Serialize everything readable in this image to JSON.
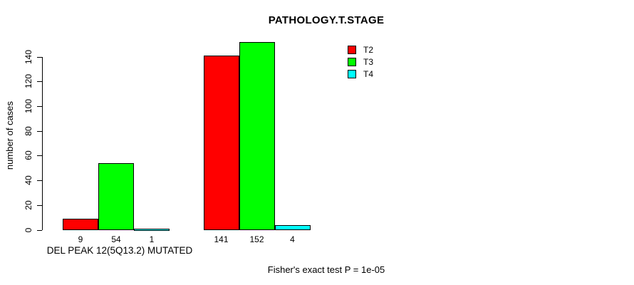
{
  "chart_data": {
    "type": "bar",
    "title": "PATHOLOGY.T.STAGE",
    "ylabel": "number of cases",
    "xlabel": "",
    "groups": [
      {
        "label": "DEL PEAK 12(5Q13.2) MUTATED",
        "values": [
          9,
          54,
          1
        ]
      },
      {
        "label": "",
        "values": [
          141,
          152,
          4
        ]
      }
    ],
    "series": [
      {
        "name": "T2",
        "color": "#ff0000"
      },
      {
        "name": "T3",
        "color": "#00ff00"
      },
      {
        "name": "T4",
        "color": "#00ffff"
      }
    ],
    "bar_value_labels": [
      [
        9,
        54,
        1
      ],
      [
        141,
        152,
        4
      ]
    ],
    "yticks": [
      0,
      20,
      40,
      60,
      80,
      100,
      120,
      140
    ],
    "ylim": [
      0,
      155
    ],
    "grid": false,
    "legend_position": "top-right",
    "annotation": "Fisher's exact test P = 1e-05",
    "colors": {
      "background": "#ffffff",
      "axis": "#000000",
      "text": "#000000"
    }
  }
}
